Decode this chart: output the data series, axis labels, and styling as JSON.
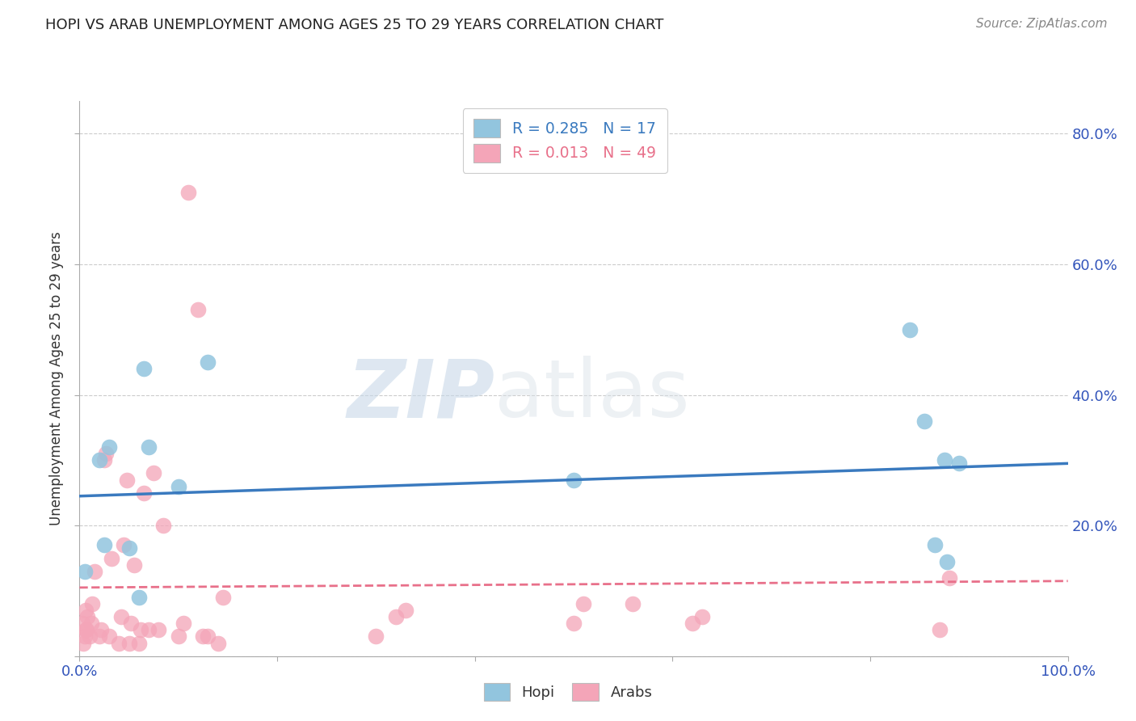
{
  "title": "HOPI VS ARAB UNEMPLOYMENT AMONG AGES 25 TO 29 YEARS CORRELATION CHART",
  "source": "Source: ZipAtlas.com",
  "ylabel": "Unemployment Among Ages 25 to 29 years",
  "xlim": [
    0,
    1.0
  ],
  "ylim": [
    0,
    0.85
  ],
  "hopi_R": 0.285,
  "hopi_N": 17,
  "arab_R": 0.013,
  "arab_N": 49,
  "hopi_color": "#92c5de",
  "arab_color": "#f4a5b8",
  "hopi_line_color": "#3a7abf",
  "arab_line_color": "#e8708a",
  "watermark_zip": "ZIP",
  "watermark_atlas": "atlas",
  "hopi_x": [
    0.005,
    0.02,
    0.025,
    0.03,
    0.05,
    0.06,
    0.065,
    0.07,
    0.1,
    0.13,
    0.84,
    0.855,
    0.865,
    0.875,
    0.878,
    0.5,
    0.89
  ],
  "hopi_y": [
    0.13,
    0.3,
    0.17,
    0.32,
    0.165,
    0.09,
    0.44,
    0.32,
    0.26,
    0.45,
    0.5,
    0.36,
    0.17,
    0.3,
    0.145,
    0.27,
    0.295
  ],
  "arab_x": [
    0.003,
    0.004,
    0.005,
    0.006,
    0.006,
    0.007,
    0.008,
    0.01,
    0.012,
    0.013,
    0.015,
    0.02,
    0.022,
    0.025,
    0.027,
    0.03,
    0.032,
    0.04,
    0.042,
    0.045,
    0.048,
    0.05,
    0.052,
    0.055,
    0.06,
    0.062,
    0.065,
    0.07,
    0.075,
    0.08,
    0.085,
    0.1,
    0.105,
    0.11,
    0.12,
    0.125,
    0.13,
    0.14,
    0.145,
    0.3,
    0.32,
    0.33,
    0.5,
    0.51,
    0.56,
    0.62,
    0.63,
    0.87,
    0.88
  ],
  "arab_y": [
    0.05,
    0.02,
    0.03,
    0.04,
    0.07,
    0.04,
    0.06,
    0.03,
    0.05,
    0.08,
    0.13,
    0.03,
    0.04,
    0.3,
    0.31,
    0.03,
    0.15,
    0.02,
    0.06,
    0.17,
    0.27,
    0.02,
    0.05,
    0.14,
    0.02,
    0.04,
    0.25,
    0.04,
    0.28,
    0.04,
    0.2,
    0.03,
    0.05,
    0.71,
    0.53,
    0.03,
    0.03,
    0.02,
    0.09,
    0.03,
    0.06,
    0.07,
    0.05,
    0.08,
    0.08,
    0.05,
    0.06,
    0.04,
    0.12
  ]
}
